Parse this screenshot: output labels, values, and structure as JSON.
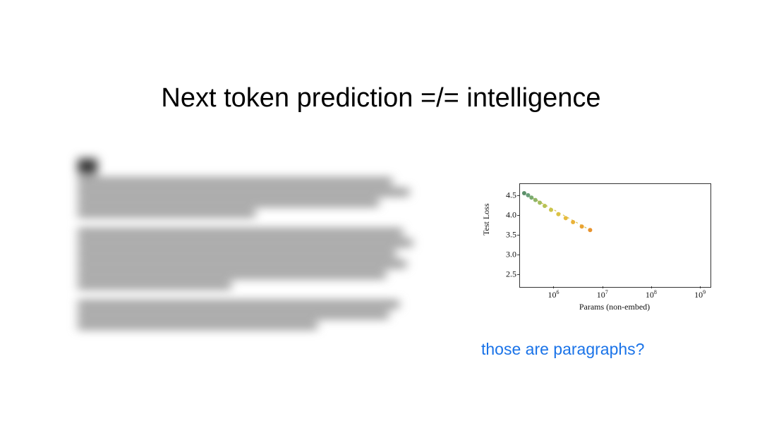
{
  "title": "Next token prediction =/= intelligence",
  "annotation": {
    "text": "those are paragraphs?",
    "color": "#1a73e8"
  },
  "chart": {
    "type": "scatter-line",
    "ylabel": "Test Loss",
    "xlabel": "Params (non-embed)",
    "xscale": "log",
    "xlim_log10": [
      5.3,
      9.2
    ],
    "ylim": [
      2.2,
      4.8
    ],
    "yticks": [
      2.5,
      3.0,
      3.5,
      4.0,
      4.5
    ],
    "xticks_log10": [
      6,
      7,
      8,
      9
    ],
    "xtick_labels": [
      "10⁶",
      "10⁷",
      "10⁸",
      "10⁹"
    ],
    "background_color": "#ffffff",
    "axis_color": "#333333",
    "tick_fontsize": 12,
    "label_fontsize": 12,
    "font_family": "Times New Roman, serif",
    "trend_line": {
      "from_log10x": 5.4,
      "from_y": 4.55,
      "to_log10x": 6.75,
      "to_y": 3.62,
      "color": "#d9c24a",
      "dash": "3,4",
      "width": 1.2
    },
    "points": [
      {
        "log10x": 5.4,
        "y": 4.55,
        "color": "#5b8f6a"
      },
      {
        "log10x": 5.48,
        "y": 4.5,
        "color": "#6aa07a"
      },
      {
        "log10x": 5.55,
        "y": 4.44,
        "color": "#7bab70"
      },
      {
        "log10x": 5.63,
        "y": 4.38,
        "color": "#8fb668"
      },
      {
        "log10x": 5.72,
        "y": 4.31,
        "color": "#a3bd5e"
      },
      {
        "log10x": 5.82,
        "y": 4.23,
        "color": "#b7c254"
      },
      {
        "log10x": 5.95,
        "y": 4.13,
        "color": "#cbc54c"
      },
      {
        "log10x": 6.1,
        "y": 4.02,
        "color": "#dcc244"
      },
      {
        "log10x": 6.25,
        "y": 3.92,
        "color": "#e6bb3e"
      },
      {
        "log10x": 6.4,
        "y": 3.82,
        "color": "#eab238"
      },
      {
        "log10x": 6.58,
        "y": 3.71,
        "color": "#eaa332"
      },
      {
        "log10x": 6.75,
        "y": 3.62,
        "color": "#e8932e"
      }
    ],
    "marker_size": 3
  }
}
